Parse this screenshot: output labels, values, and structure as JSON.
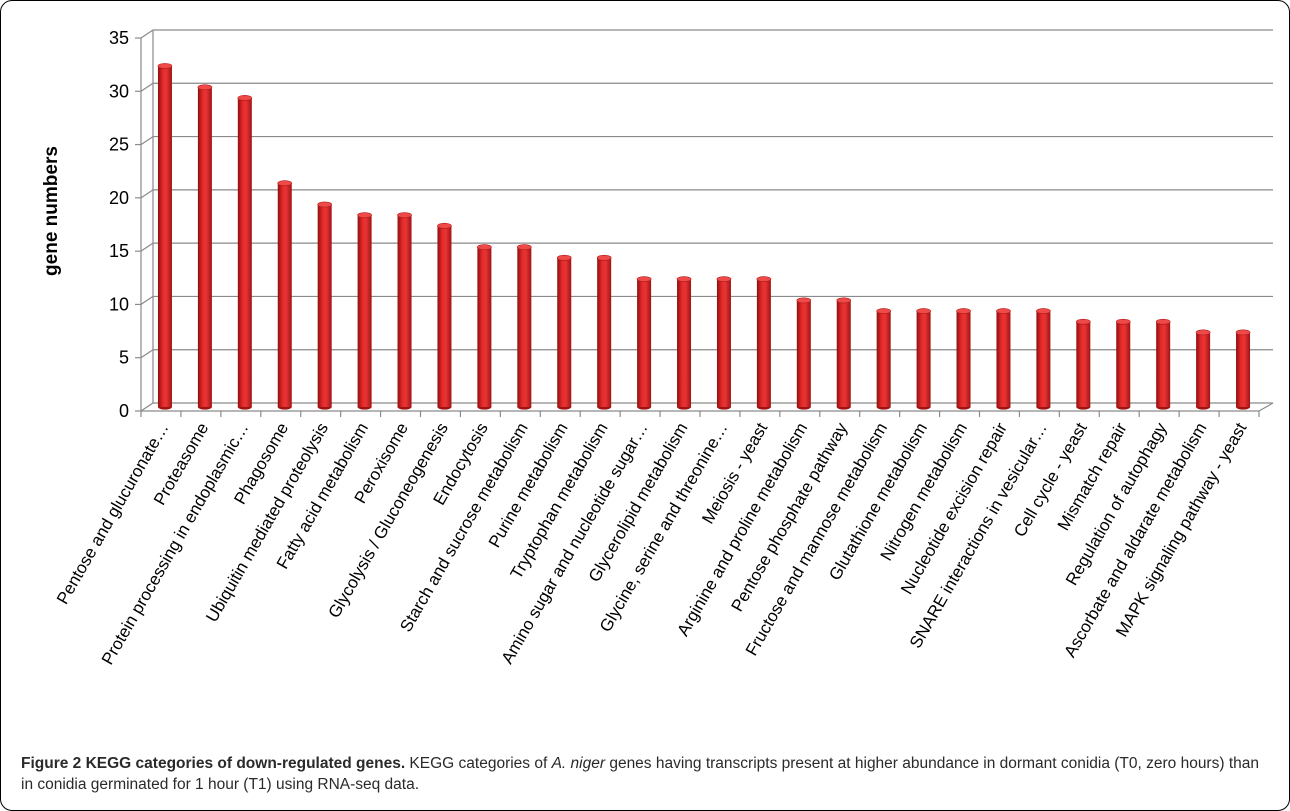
{
  "chart_data": {
    "type": "bar",
    "ylabel": "gene numbers",
    "ylim": [
      0,
      35
    ],
    "yticks": [
      0,
      5,
      10,
      15,
      20,
      25,
      30,
      35
    ],
    "grid": true,
    "bar_color": "#d91f1f",
    "categories": [
      "Pentose and glucuronate…",
      "Proteasome",
      "Protein processing in endoplasmic…",
      "Phagosome",
      "Ubiquitin mediated proteolysis",
      "Fatty acid metabolism",
      "Peroxisome",
      "Glycolysis / Gluconeogenesis",
      "Endocytosis",
      "Starch and sucrose metabolism",
      "Purine metabolism",
      "Tryptophan metabolism",
      "Amino sugar and nucleotide sugar…",
      "Glycerolipid metabolism",
      "Glycine, serine and threonine…",
      "Meiosis - yeast",
      "Arginine and proline metabolism",
      "Pentose phosphate pathway",
      "Fructose and mannose metabolism",
      "Glutathione metabolism",
      "Nitrogen metabolism",
      "Nucleotide excision repair",
      "SNARE interactions in vesicular…",
      "Cell cycle - yeast",
      "Mismatch repair",
      "Regulation of autophagy",
      "Ascorbate and aldarate metabolism",
      "MAPK signaling pathway - yeast"
    ],
    "values": [
      32,
      30,
      29,
      21,
      19,
      18,
      18,
      17,
      15,
      15,
      14,
      14,
      12,
      12,
      12,
      12,
      10,
      10,
      9,
      9,
      9,
      9,
      9,
      8,
      8,
      8,
      7,
      7
    ]
  },
  "caption": {
    "label": "Figure 2 KEGG categories of down-regulated genes.",
    "text_1": " KEGG categories of ",
    "species": "A. niger",
    "text_2": " genes having transcripts present at higher abundance in dormant conidia (T0, zero hours) than in conidia germinated for 1 hour (T1) using RNA-seq data."
  }
}
